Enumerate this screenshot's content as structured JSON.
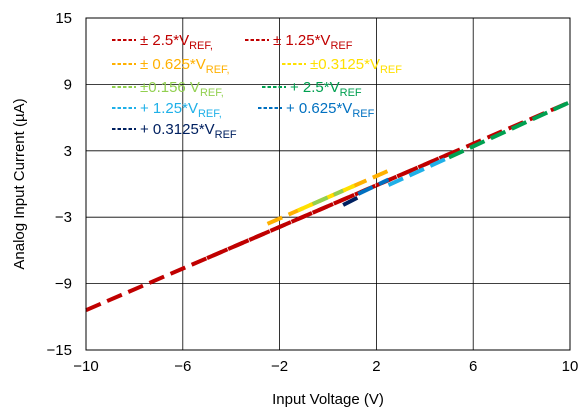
{
  "chart_data": {
    "type": "line",
    "title": "",
    "xlabel": "Input Voltage (V)",
    "ylabel": "Analog Input Current (µA)",
    "xlim": [
      -10,
      10
    ],
    "ylim": [
      -15,
      15
    ],
    "xticks": [
      -10,
      -6,
      -2,
      2,
      6,
      10
    ],
    "yticks": [
      15,
      9,
      3,
      -3,
      -9,
      -15
    ],
    "xtick_labels": [
      "−10",
      "−6",
      "−2",
      "2",
      "6",
      "10"
    ],
    "ytick_labels": [
      "15",
      "9",
      "3",
      "−3",
      "−9",
      "−15"
    ],
    "grid": true,
    "legend_position": "top-left",
    "series": [
      {
        "name": "± 2.5*V",
        "name_sub": "REF,",
        "color": "#c00000",
        "x": [
          -10,
          10
        ],
        "y": [
          -11.4,
          7.4
        ]
      },
      {
        "name": "± 1.25*V",
        "name_sub": "REF",
        "color": "#c00000",
        "x": [
          -5,
          5
        ],
        "y": [
          -6.7,
          2.7
        ]
      },
      {
        "name": "± 0.625*V",
        "name_sub": "REF,",
        "color": "#ffb000",
        "x": [
          -2.5,
          2.5
        ],
        "y": [
          -3.6,
          1.2
        ]
      },
      {
        "name": "±0.3125*V",
        "name_sub": "REF",
        "color": "#ffe000",
        "x": [
          -1.25,
          1.25
        ],
        "y": [
          -2.4,
          0.0
        ]
      },
      {
        "name": "±0.156 V",
        "name_sub": "REF,",
        "color": "#92d050",
        "x": [
          -0.625,
          0.625
        ],
        "y": [
          -1.8,
          -0.6
        ]
      },
      {
        "name": "+ 2.5*V",
        "name_sub": "REF",
        "color": "#00a050",
        "x": [
          5,
          10
        ],
        "y": [
          2.4,
          7.4
        ]
      },
      {
        "name": "+ 1.25*V",
        "name_sub": "REF,",
        "color": "#1fb0e8",
        "x": [
          2.5,
          5
        ],
        "y": [
          -0.1,
          2.4
        ]
      },
      {
        "name": "+ 0.625*V",
        "name_sub": "REF",
        "color": "#0070c0",
        "x": [
          1.25,
          2.5
        ],
        "y": [
          -0.9,
          0.4
        ]
      },
      {
        "name": "+ 0.3125*V",
        "name_sub": "REF",
        "color": "#002060",
        "x": [
          0.625,
          1.25
        ],
        "y": [
          -1.9,
          -1.2
        ]
      }
    ]
  }
}
